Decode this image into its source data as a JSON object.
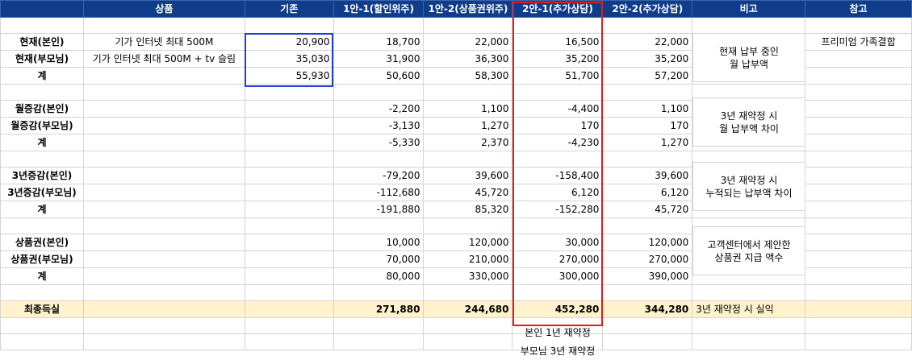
{
  "headers": [
    "",
    "상품",
    "기존",
    "1안-1(할인위주)",
    "1안-2(상품권위주)",
    "2안-1(추가상담)",
    "2안-2(추가상담)",
    "비고",
    "참고"
  ],
  "sections": [
    {
      "rows": [
        {
          "label": "현재(본인)",
          "product": "기가 인터넷 최대 500M",
          "base": "20,900",
          "v1": "18,700",
          "v2": "22,000",
          "v3": "16,500",
          "v4": "22,000",
          "ref": "프리미엄 가족결합"
        },
        {
          "label": "현재(부모님)",
          "product": "기가 인터넷 최대 500M + tv 슬림",
          "base": "35,030",
          "v1": "31,900",
          "v2": "36,300",
          "v3": "35,200",
          "v4": "35,200",
          "ref": ""
        },
        {
          "label": "계",
          "product": "",
          "base": "55,930",
          "v1": "50,600",
          "v2": "58,300",
          "v3": "51,700",
          "v4": "57,200",
          "ref": ""
        }
      ],
      "note_line1": "현재 납부 중인",
      "note_line2": "월 납부액"
    },
    {
      "rows": [
        {
          "label": "월증감(본인)",
          "product": "",
          "base": "",
          "v1": "-2,200",
          "v2": "1,100",
          "v3": "-4,400",
          "v4": "1,100",
          "ref": ""
        },
        {
          "label": "월증감(부모님)",
          "product": "",
          "base": "",
          "v1": "-3,130",
          "v2": "1,270",
          "v3": "170",
          "v4": "170",
          "ref": ""
        },
        {
          "label": "계",
          "product": "",
          "base": "",
          "v1": "-5,330",
          "v2": "2,370",
          "v3": "-4,230",
          "v4": "1,270",
          "ref": ""
        }
      ],
      "note_line1": "3년 재약정 시",
      "note_line2": "월 납부액 차이"
    },
    {
      "rows": [
        {
          "label": "3년증감(본인)",
          "product": "",
          "base": "",
          "v1": "-79,200",
          "v2": "39,600",
          "v3": "-158,400",
          "v4": "39,600",
          "ref": ""
        },
        {
          "label": "3년증감(부모님)",
          "product": "",
          "base": "",
          "v1": "-112,680",
          "v2": "45,720",
          "v3": "6,120",
          "v4": "6,120",
          "ref": ""
        },
        {
          "label": "계",
          "product": "",
          "base": "",
          "v1": "-191,880",
          "v2": "85,320",
          "v3": "-152,280",
          "v4": "45,720",
          "ref": ""
        }
      ],
      "note_line1": "3년 재약정 시",
      "note_line2": "누적되는 납부액 차이"
    },
    {
      "rows": [
        {
          "label": "상품권(본인)",
          "product": "",
          "base": "",
          "v1": "10,000",
          "v2": "120,000",
          "v3": "30,000",
          "v4": "120,000",
          "ref": ""
        },
        {
          "label": "상품권(부모님)",
          "product": "",
          "base": "",
          "v1": "70,000",
          "v2": "210,000",
          "v3": "270,000",
          "v4": "270,000",
          "ref": ""
        },
        {
          "label": "계",
          "product": "",
          "base": "",
          "v1": "80,000",
          "v2": "330,000",
          "v3": "300,000",
          "v4": "390,000",
          "ref": ""
        }
      ],
      "note_line1": "고객센터에서 제안한",
      "note_line2": "상품권 지급 액수"
    }
  ],
  "final": {
    "label": "최종득실",
    "v1": "271,880",
    "v2": "244,680",
    "v3": "452,280",
    "v4": "344,280",
    "note": "3년 재약정 시 실익"
  },
  "below_notes": [
    "본인 1년 재약정",
    "부모님 3년 재약정"
  ],
  "colors": {
    "header_bg": "#0f3d8c",
    "final_bg": "#fff2cc",
    "highlight_blue": "#1f3fd6",
    "highlight_red": "#e11d1d"
  }
}
